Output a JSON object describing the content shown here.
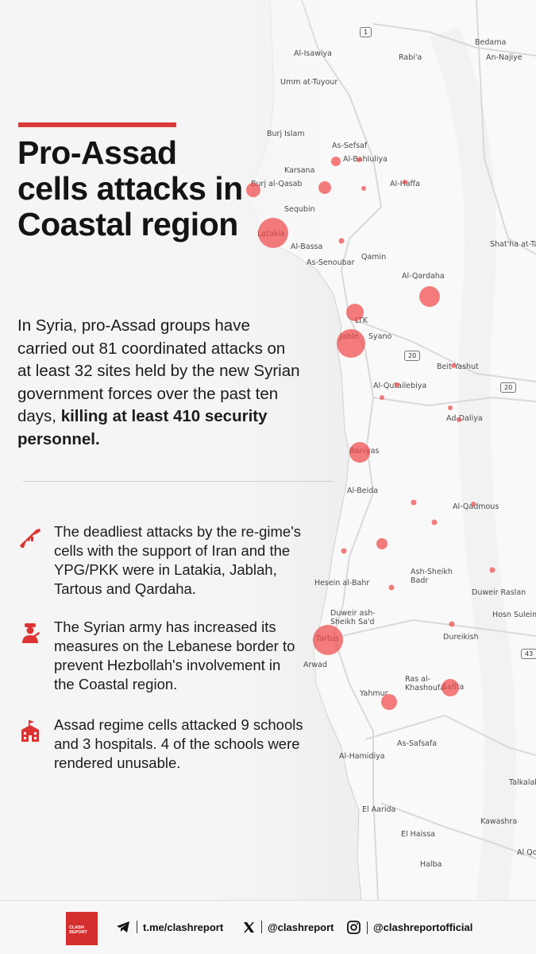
{
  "title": "Pro-Assad cells attacks in Coastal region",
  "intro": {
    "text": "In Syria, pro-Assad groups have carried out 81 coordinated attacks on at least 32 sites held by the new Syrian government forces over the past ten days, ",
    "bold": "killing at least 410 security personnel."
  },
  "bullets": [
    {
      "icon": "rifle-icon",
      "text": "The deadliest attacks by the re-gime's cells with the support of Iran and the YPG/PKK were in Latakia, Jablah, Tartous and Qardaha."
    },
    {
      "icon": "soldier-icon",
      "text": "The Syrian army has increased its measures on the Lebanese border to prevent Hezbollah's involvement in the Coastal region."
    },
    {
      "icon": "school-icon",
      "text": "Assad regime cells attacked 9 schools and 3 hospitals. 4 of the schools were rendered unusable."
    }
  ],
  "map": {
    "labels": [
      "Bedama",
      "An-Najiye",
      "Al-Isawiya",
      "Rabi'a",
      "Umm at-Tuyour",
      "Burj Islam",
      "As-Sefsaf",
      "Al-Bahluliya",
      "Karsana",
      "Burj al-Qasab",
      "Al-Haffa",
      "Sequbin",
      "Latakia",
      "Al-Bassa",
      "As-Senoubar",
      "Qamin",
      "Shat'ha at-Tah",
      "Al-Qardaha",
      "LTK",
      "Jable",
      "Syano",
      "Beit Yashut",
      "Al-Qutailebiya",
      "Ad-Daliya",
      "Baniyas",
      "Al-Beida",
      "Al-Qadmous",
      "Ash-Sheikh Badr",
      "Hesein al-Bahr",
      "Duweir Raslan",
      "Hosn Suleima",
      "Duweir ash-Sheikh Sa'd",
      "Tartus",
      "Dureikish",
      "Arwad",
      "Ras al-Khashoufa",
      "Safita",
      "Yahmur",
      "As-Safsafa",
      "Al-Hamidiya",
      "Talkalak",
      "El Aarida",
      "Kawashra",
      "El Haissa",
      "Al Qou",
      "Halba"
    ],
    "roads": [
      "1",
      "20",
      "20",
      "43"
    ],
    "accent": "#f04a4a"
  },
  "footer": {
    "logo_text": "CLASH REPORT",
    "telegram": "t.me/clashreport",
    "x": "@clashreport",
    "instagram": "@clashreportofficial"
  }
}
